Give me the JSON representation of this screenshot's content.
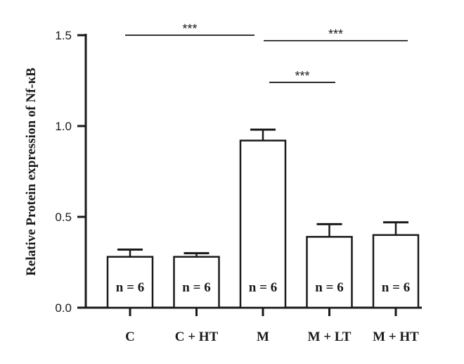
{
  "chart_data": {
    "type": "bar",
    "title": "",
    "xlabel": "",
    "ylabel": "Relative Protein expression of Nf-κB",
    "ylim": [
      0,
      1.5
    ],
    "yticks": [
      0.0,
      0.5,
      1.0,
      1.5
    ],
    "ytick_labels": [
      "0.0",
      "0.5",
      "1.0",
      "1.5"
    ],
    "categories": [
      "C",
      "C + HT",
      "M",
      "M + LT",
      "M + HT"
    ],
    "values": [
      0.28,
      0.28,
      0.92,
      0.39,
      0.4
    ],
    "errors": [
      0.04,
      0.02,
      0.06,
      0.07,
      0.07
    ],
    "bar_labels": [
      "n = 6",
      "n = 6",
      "n = 6",
      "n = 6",
      "n = 6"
    ],
    "significance": [
      {
        "from": 0,
        "to": 2,
        "y": 1.5,
        "label": "***"
      },
      {
        "from": 2,
        "to": 4,
        "y": 1.47,
        "label": "***"
      },
      {
        "from": 2,
        "to": 3,
        "y": 1.24,
        "label": "***"
      }
    ],
    "grid": false,
    "bar_fill": "#ffffff",
    "bar_stroke": "#1a1a1a"
  }
}
